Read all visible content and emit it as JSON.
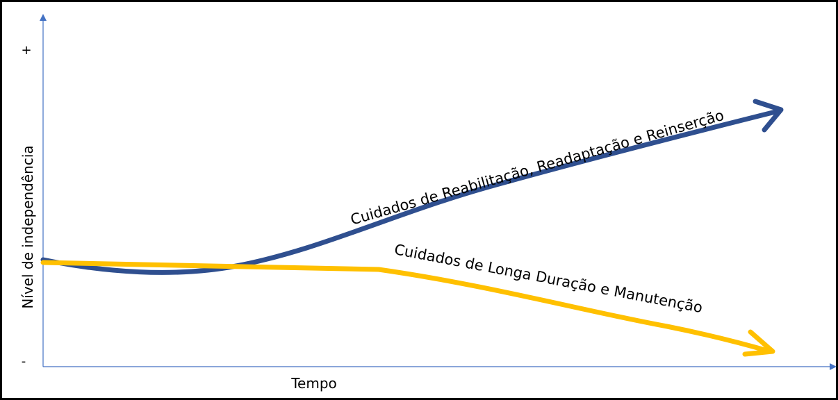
{
  "diagram": {
    "y_axis": {
      "label": "Nível de independência",
      "top_label": "+",
      "bottom_label": "-"
    },
    "x_axis": {
      "label": "Tempo"
    },
    "curves": [
      {
        "label": "Cuidados de Reabilitação, Readaptação e Reinserção",
        "color": "#2f4f8f"
      },
      {
        "label": "Cuidados de Longa Duração e Manutenção",
        "color": "#ffc000"
      }
    ]
  }
}
